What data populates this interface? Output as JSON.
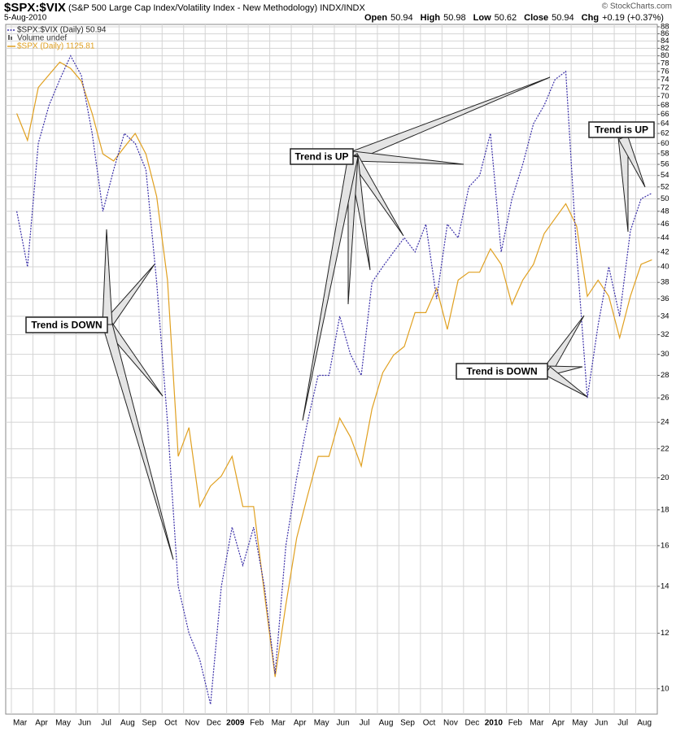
{
  "chart_data": {
    "type": "line",
    "title": "$SPX:$VIX",
    "subtitle": "(S&P 500 Large Cap Index/Volatility Index - New Methodology) INDX/INDX",
    "date": "5-Aug-2010",
    "source": "© StockCharts.com",
    "quote": [
      {
        "label": "Open",
        "value": 50.94
      },
      {
        "label": "High",
        "value": 50.98
      },
      {
        "label": "Low",
        "value": 50.62
      },
      {
        "label": "Close",
        "value": 50.94
      },
      {
        "label": "Chg",
        "value": "+0.19 (+0.37%)"
      }
    ],
    "volume_label": "Volume undef",
    "categories": [
      "Mar",
      null,
      "Apr",
      null,
      "May",
      null,
      "Jun",
      null,
      "Jul",
      null,
      "Aug",
      null,
      "Sep",
      null,
      "Oct",
      null,
      "Nov",
      null,
      "Dec",
      null,
      "2009",
      null,
      "Feb",
      null,
      "Mar",
      null,
      "Apr",
      null,
      "May",
      null,
      "Jun",
      null,
      "Jul",
      null,
      "Aug",
      null,
      "Sep",
      null,
      "Oct",
      null,
      "Nov",
      null,
      "Dec",
      null,
      "2010",
      null,
      "Feb",
      null,
      "Mar",
      null,
      "Apr",
      null,
      "May",
      null,
      "Jun",
      null,
      "Jul",
      null,
      "Aug",
      null
    ],
    "series": [
      {
        "name": "$SPX:$VIX (Daily) 50.94",
        "color": "#3a2fa8",
        "dashed": true,
        "values": [
          48,
          40,
          60,
          68,
          74,
          80,
          75,
          62,
          48,
          55,
          62,
          60,
          55,
          38,
          24,
          14,
          12,
          11,
          9.5,
          14,
          17,
          15,
          17,
          14,
          10.5,
          16,
          20,
          24,
          28,
          28,
          34,
          30,
          28,
          38,
          40,
          42,
          44,
          42,
          46,
          36,
          46,
          44,
          52,
          54,
          62,
          42,
          50,
          56,
          64,
          68,
          74,
          76,
          42,
          26,
          33,
          40,
          34,
          45,
          50,
          50.94
        ]
      },
      {
        "name": "$SPX (Daily) 1125.81",
        "color": "#e0a020",
        "axis": "y2",
        "dashed": false,
        "values": [
          1330,
          1290,
          1370,
          1390,
          1410,
          1400,
          1380,
          1330,
          1270,
          1260,
          1280,
          1300,
          1270,
          1210,
          1100,
          900,
          930,
          850,
          870,
          880,
          900,
          850,
          850,
          770,
          700,
          760,
          820,
          860,
          900,
          900,
          940,
          920,
          890,
          950,
          990,
          1010,
          1020,
          1060,
          1060,
          1090,
          1040,
          1100,
          1110,
          1110,
          1140,
          1120,
          1070,
          1100,
          1120,
          1160,
          1180,
          1200,
          1170,
          1080,
          1100,
          1080,
          1030,
          1080,
          1120,
          1125.81
        ]
      }
    ],
    "ylim": [
      9.2,
      88.7
    ],
    "yticks": [
      10,
      12,
      14,
      16,
      18,
      20,
      22,
      24,
      26,
      28,
      30,
      32,
      34,
      36,
      38,
      40,
      42,
      44,
      46,
      48,
      50,
      52,
      54,
      56,
      58,
      60,
      62,
      64,
      66,
      68,
      70,
      72,
      74,
      76,
      78,
      80,
      82,
      84,
      86,
      88
    ],
    "y2lim": [
      671,
      1472
    ],
    "log_scale": true,
    "grid": true,
    "annotations": [
      {
        "text": "Trend is DOWN"
      },
      {
        "text": "Trend is UP"
      },
      {
        "text": "Trend is DOWN"
      },
      {
        "text": "Trend is UP"
      }
    ]
  }
}
